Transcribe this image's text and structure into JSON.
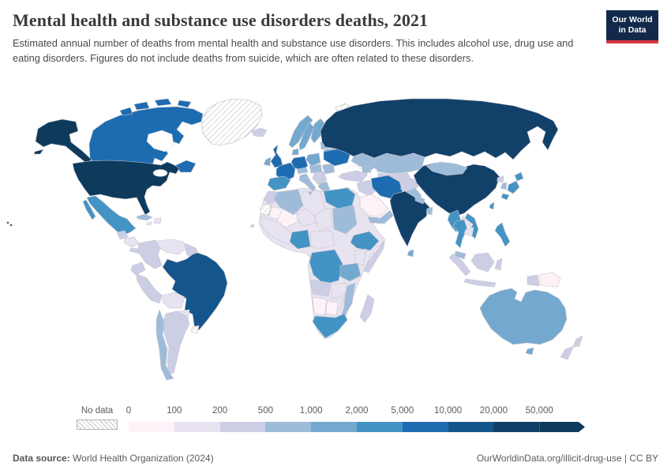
{
  "header": {
    "title": "Mental health and substance use disorders deaths, 2021",
    "subtitle": "Estimated annual number of deaths from mental health and substance use disorders. This includes alcohol use, drug use and eating disorders. Figures do not include deaths from suicide, which are often related to these disorders.",
    "logo": {
      "line1": "Our World",
      "line2": "in Data",
      "bg": "#12294b",
      "accent": "#d8353f"
    }
  },
  "legend": {
    "no_data_label": "No data",
    "ticks": [
      "0",
      "100",
      "200",
      "500",
      "1,000",
      "2,000",
      "5,000",
      "10,000",
      "20,000",
      "50,000"
    ],
    "colors": [
      "#fdf2f8",
      "#e8e3f0",
      "#cbcee4",
      "#9ebcda",
      "#74a9cf",
      "#4394c4",
      "#1d6cb1",
      "#14568c",
      "#114169",
      "#0e3a5c"
    ]
  },
  "footer": {
    "source_label": "Data source:",
    "source_value": " World Health Organization (2024)",
    "attribution": "OurWorldinData.org/illicit-drug-use | CC BY"
  },
  "chart_data": {
    "type": "choropleth",
    "title": "Mental health and substance use disorders deaths",
    "year": 2021,
    "unit": "deaths",
    "source": "World Health Organization (2024)",
    "legend_position": "bottom",
    "bin_edges": [
      0,
      100,
      200,
      500,
      1000,
      2000,
      5000,
      10000,
      20000,
      50000
    ],
    "bin_labels": [
      "0-100",
      "100-200",
      "200-500",
      "500-1,000",
      "1,000-2,000",
      "2,000-5,000",
      "5,000-10,000",
      "10,000-20,000",
      "20,000-50,000",
      "50,000+"
    ],
    "no_data_label": "No data",
    "regions": {
      "united-states": 9,
      "russia": 8,
      "china": 8,
      "india": 8,
      "brazil": 7,
      "canada": 6,
      "united-kingdom": 6,
      "france": 6,
      "germany": 6,
      "ukraine": 6,
      "iran": 6,
      "mexico": 5,
      "spain": 5,
      "egypt": 5,
      "japan": 5,
      "nigeria": 5,
      "dr-congo": 5,
      "ethiopia": 5,
      "south-africa": 5,
      "thailand": 5,
      "vietnam": 5,
      "myanmar": 5,
      "philippines": 5,
      "taiwan": 5,
      "australia": 4,
      "norway": 4,
      "sweden": 4,
      "finland": 4,
      "poland": 4,
      "ireland": 4,
      "denmark": 4,
      "belarus": 4,
      "tanzania": 4,
      "sri-lanka": 4,
      "italy": 3,
      "kazakhstan": 3,
      "mongolia": 3,
      "algeria": 3,
      "sudan": 3,
      "cuba": 3,
      "chile": 3,
      "pakistan": 3,
      "south-korea": 3,
      "greece": 3,
      "romania": 3,
      "baltic-states": 3,
      "czech-hungary": 3,
      "switzerland-austria": 3,
      "caucasus": 3,
      "mozambique": 3,
      "malaysia": 3,
      "yemen-oman": 3,
      "nepal": 3,
      "bangladesh": 3,
      "colombia": 2,
      "peru": 2,
      "argentina": 2,
      "ecuador": 2,
      "guianas": 2,
      "madagascar": 2,
      "turkey": 2,
      "afghanistan": 2,
      "central-asia": 2,
      "balkans": 2,
      "new-zealand": 2,
      "indonesia": 2,
      "north-korea": 2,
      "guatemala": 2,
      "angola": 2,
      "iceland": 2,
      "somalia": 2,
      "morocco": 2,
      "costa-panama": 2,
      "syria-iraq": 2,
      "cape-verde": 2,
      "venezuela": 1,
      "bolivia": 1,
      "paraguay": 1,
      "honduras-nicaragua": 1,
      "hispaniola": 1,
      "jamaica": 1,
      "libya": 1,
      "niger": 1,
      "chad": 1,
      "kenya": 1,
      "zambia": 1,
      "zimbabwe": 1,
      "west-africa": 1,
      "cameroon-car": 1,
      "laos": 1,
      "cambodia": 1,
      "saudi-arabia": 0,
      "uruguay": 0,
      "papua-new-guinea": 0,
      "mauritania": 0,
      "mali": 0,
      "namibia": 0,
      "botswana": 0,
      "greenland": "no-data",
      "svalbard": "no-data",
      "french-guiana": "no-data",
      "western-sahara": "no-data"
    }
  }
}
